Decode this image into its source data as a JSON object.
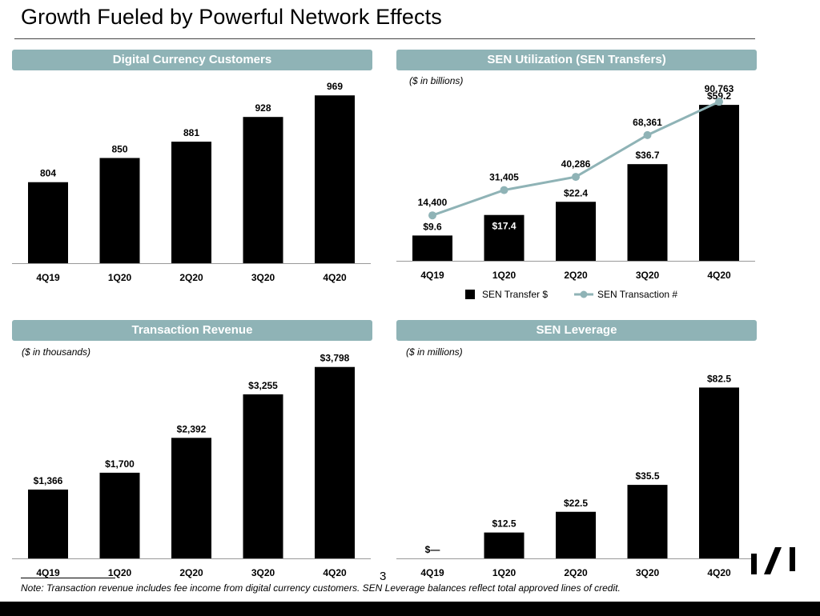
{
  "page": {
    "title": "Growth Fueled by Powerful Network Effects",
    "page_number": "3",
    "footnote": "Note: Transaction revenue includes fee income from digital currency customers. SEN Leverage balances reflect total approved lines of credit."
  },
  "colors": {
    "header_bg": "#8fb3b6",
    "bar": "#000000",
    "line": "#8fb3b6"
  },
  "chart_data": [
    {
      "type": "bar",
      "title": "Digital Currency Customers",
      "subtitle": "",
      "categories": [
        "4Q19",
        "1Q20",
        "2Q20",
        "3Q20",
        "4Q20"
      ],
      "values": [
        804,
        850,
        881,
        928,
        969
      ],
      "data_labels": [
        "804",
        "850",
        "881",
        "928",
        "969"
      ],
      "ylim": [
        650,
        980
      ],
      "grid": false
    },
    {
      "type": "bar",
      "title": "SEN Utilization (SEN Transfers)",
      "subtitle": "($ in billions)",
      "categories": [
        "4Q19",
        "1Q20",
        "2Q20",
        "3Q20",
        "4Q20"
      ],
      "series": [
        {
          "name": "SEN Transfer $",
          "type": "bar",
          "values": [
            9.6,
            17.4,
            22.4,
            36.7,
            59.2
          ],
          "data_labels": [
            "$9.6",
            "$17.4",
            "$22.4",
            "$36.7",
            "$59.2"
          ]
        },
        {
          "name": "SEN Transaction #",
          "type": "line",
          "values": [
            14400,
            31405,
            40286,
            68361,
            90763
          ],
          "data_labels": [
            "14,400",
            "31,405",
            "40,286",
            "68,361",
            "90,763"
          ]
        }
      ],
      "ylim_bar": [
        0,
        65
      ],
      "ylim_line": [
        0,
        100000
      ],
      "legend": "bottom-center",
      "grid": false
    },
    {
      "type": "bar",
      "title": "Transaction Revenue",
      "subtitle": "($ in thousands)",
      "categories": [
        "4Q19",
        "1Q20",
        "2Q20",
        "3Q20",
        "4Q20"
      ],
      "values": [
        1366,
        1700,
        2392,
        3255,
        3798
      ],
      "data_labels": [
        "$1,366",
        "$1,700",
        "$2,392",
        "$3,255",
        "$3,798"
      ],
      "ylim": [
        0,
        4000
      ],
      "grid": false
    },
    {
      "type": "bar",
      "title": "SEN Leverage",
      "subtitle": "($ in millions)",
      "categories": [
        "4Q19",
        "1Q20",
        "2Q20",
        "3Q20",
        "4Q20"
      ],
      "values": [
        0,
        12.5,
        22.5,
        35.5,
        82.5
      ],
      "data_labels": [
        "$—",
        "$12.5",
        "$22.5",
        "$35.5",
        "$82.5"
      ],
      "ylim": [
        0,
        90
      ],
      "grid": false
    }
  ]
}
